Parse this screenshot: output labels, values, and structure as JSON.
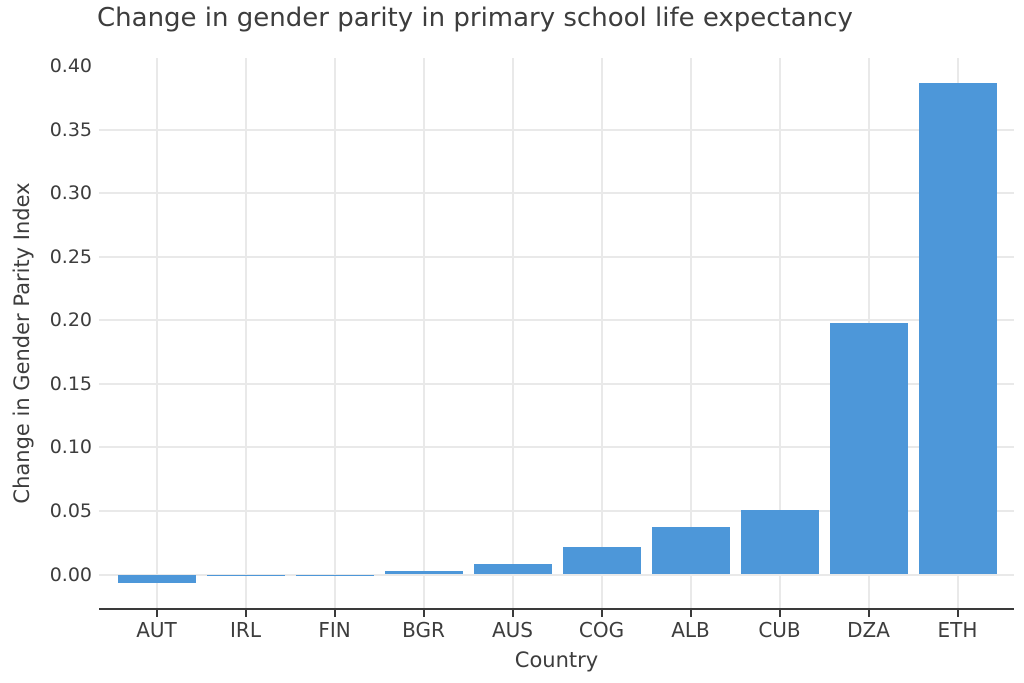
{
  "chart_data": {
    "type": "bar",
    "title": "Change in gender parity in primary school life expectancy",
    "xlabel": "Country",
    "ylabel": "Change in Gender Parity Index",
    "categories": [
      "AUT",
      "IRL",
      "FIN",
      "BGR",
      "AUS",
      "COG",
      "ALB",
      "CUB",
      "DZA",
      "ETH"
    ],
    "values": [
      -0.007,
      -0.001,
      -0.0005,
      0.003,
      0.008,
      0.022,
      0.037,
      0.051,
      0.198,
      0.387
    ],
    "yticks": [
      0.0,
      0.05,
      0.1,
      0.15,
      0.2,
      0.25,
      0.3,
      0.35,
      0.4
    ],
    "ytick_labels": [
      "0.00",
      "0.05",
      "0.10",
      "0.15",
      "0.20",
      "0.25",
      "0.30",
      "0.35",
      "0.40"
    ],
    "ylim": [
      -0.027,
      0.407
    ],
    "grid": true,
    "legend": false,
    "bar_color": "#4d97d9",
    "grid_color": "#e9e9e9",
    "axis_color": "#3a3a3a",
    "text_color": "#3d3d3d",
    "background": "#ffffff"
  }
}
